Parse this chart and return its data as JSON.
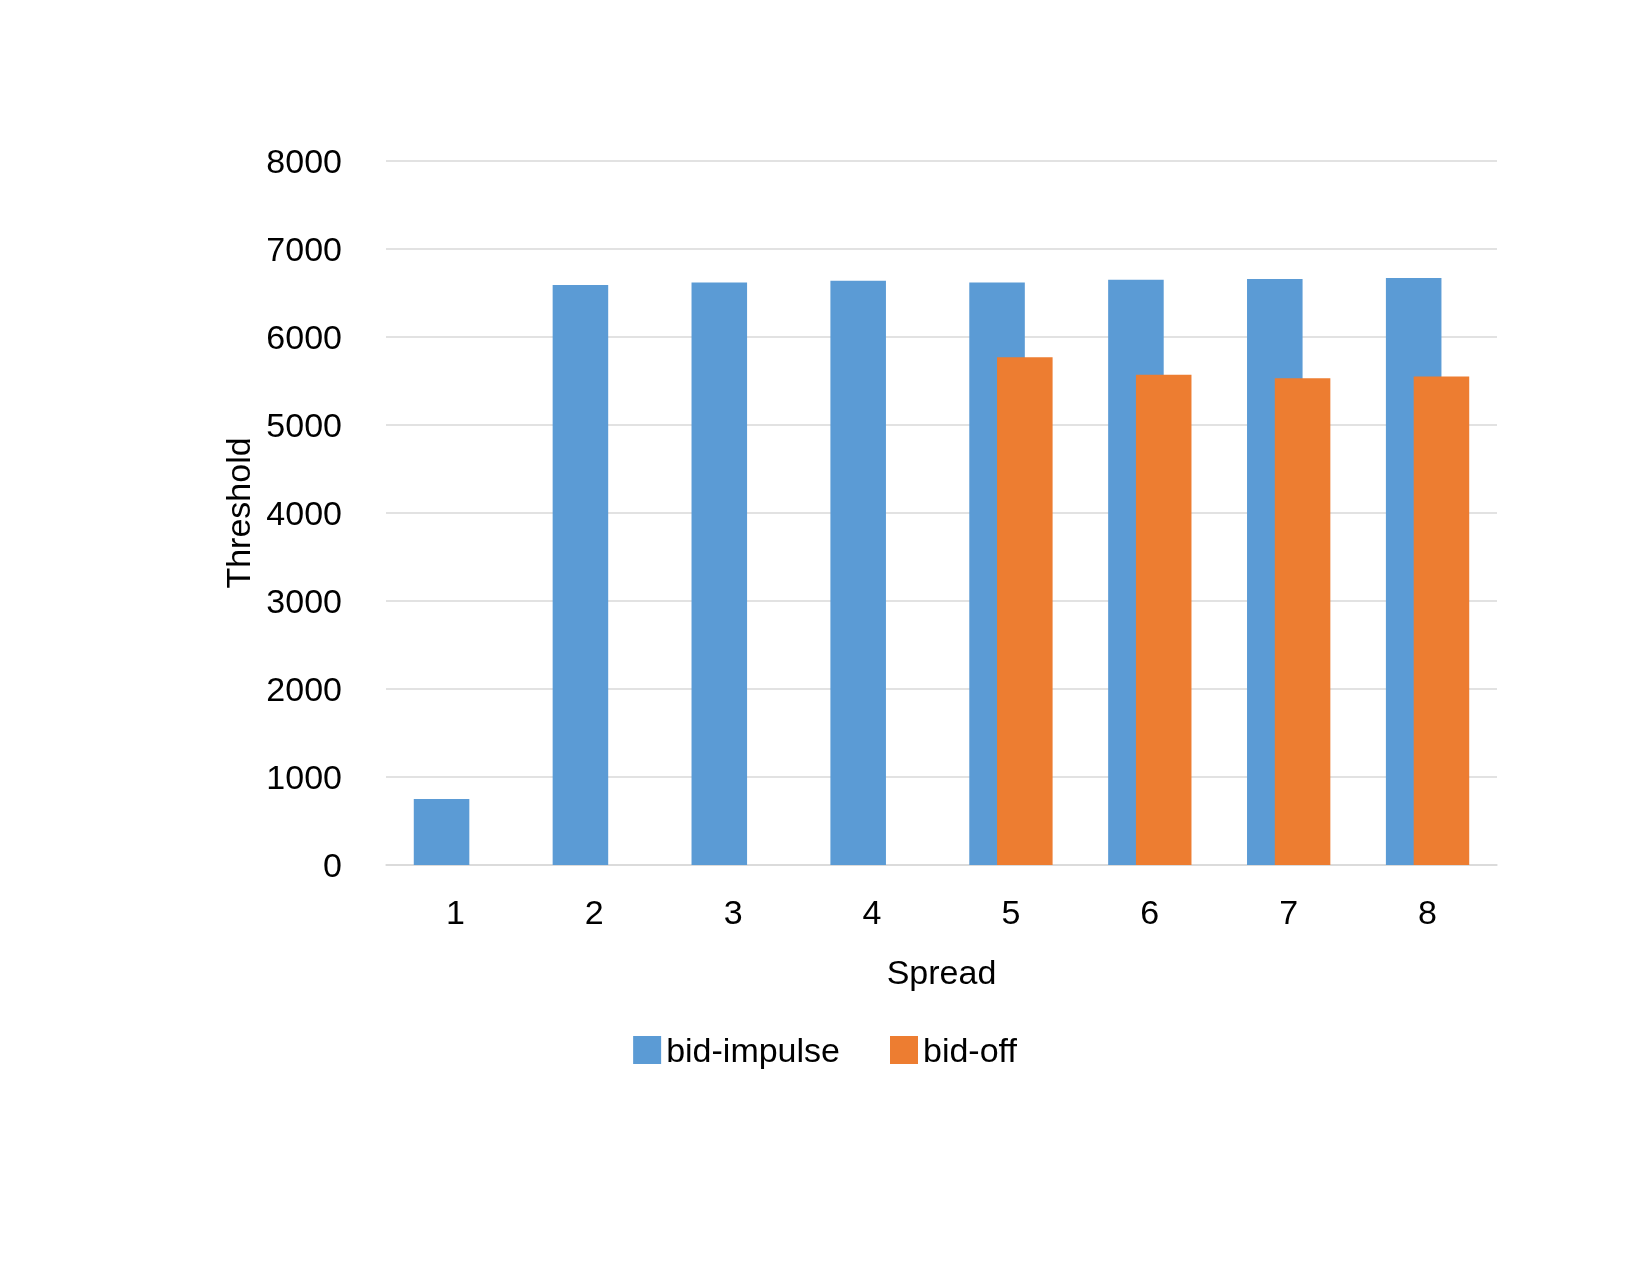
{
  "chart_data": {
    "type": "bar",
    "xlabel": "Spread",
    "ylabel": "Threshold",
    "categories": [
      "1",
      "2",
      "3",
      "4",
      "5",
      "6",
      "7",
      "8"
    ],
    "series": [
      {
        "name": "bid-impulse",
        "color": "#5b9bd5",
        "values": [
          750,
          6590,
          6620,
          6640,
          6620,
          6650,
          6660,
          6670
        ]
      },
      {
        "name": "bid-off",
        "color": "#ed7d31",
        "values": [
          null,
          null,
          null,
          null,
          5770,
          5570,
          5530,
          5550
        ]
      }
    ],
    "ylim": [
      0,
      8000
    ],
    "yticks": [
      0,
      1000,
      2000,
      3000,
      4000,
      5000,
      6000,
      7000,
      8000
    ],
    "grid": "y",
    "legend": "bottom"
  }
}
